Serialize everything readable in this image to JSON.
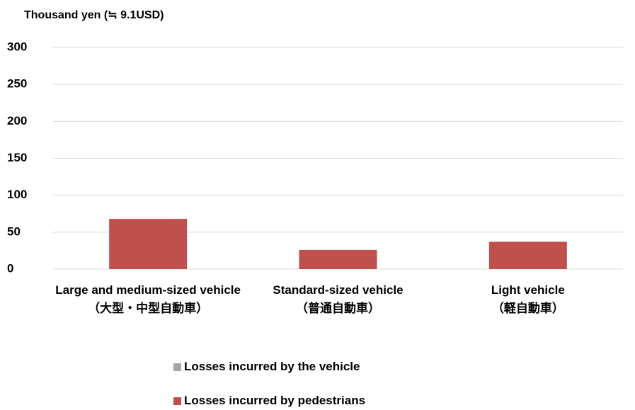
{
  "chart_data": {
    "type": "stacked_bar",
    "y_axis_label": "Thousand yen (≒ 9.1USD)",
    "categories": [
      "Large and medium-sized vehicle\n（大型・中型自動車）",
      "Standard-sized vehicle\n（普通自動車）",
      "Light vehicle\n（軽自動車）"
    ],
    "series": [
      {
        "name": "Losses incurred by the vehicle",
        "color": "#a5a5a5",
        "values": [
          0,
          0,
          0
        ]
      },
      {
        "name": "Losses incurred by pedestrians",
        "color": "#c0504d",
        "values": [
          68,
          26,
          37
        ]
      }
    ],
    "ylim": [
      0,
      300
    ],
    "yticks": [
      0,
      50,
      100,
      150,
      200,
      250,
      300
    ],
    "grid": true,
    "legend": "bottom"
  }
}
